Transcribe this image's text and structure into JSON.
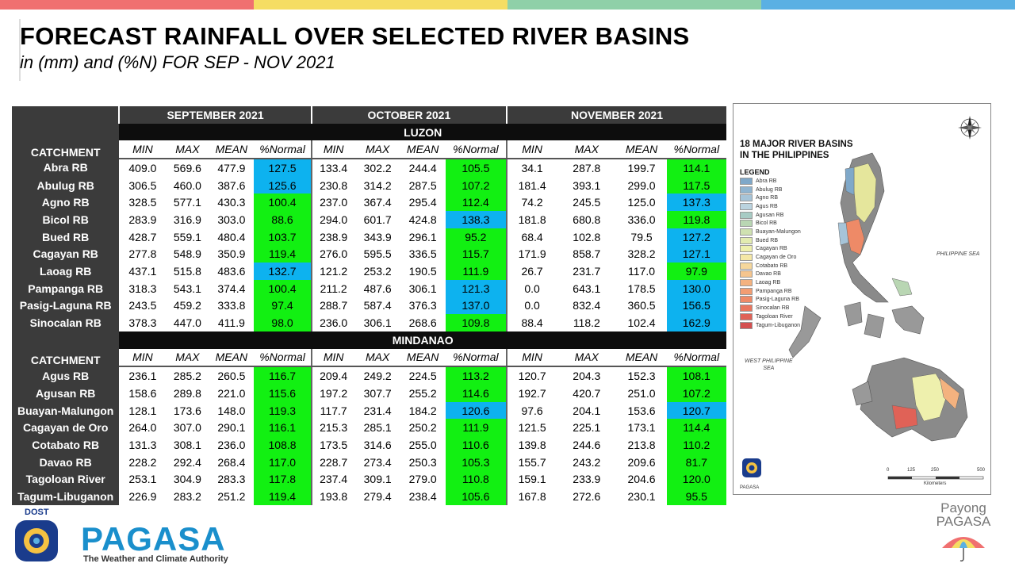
{
  "title": "FORECAST RAINFALL OVER SELECTED RIVER BASINS",
  "subtitle": "in (mm) and (%N) FOR  SEP - NOV 2021",
  "colors": {
    "top_bar": [
      "#f07070",
      "#f5dd63",
      "#8fd0a8",
      "#5ab0e3"
    ],
    "above_normal": "#12f012",
    "near_normal": "#0db2ef",
    "header_dark": "#3b3b3b"
  },
  "table": {
    "catchment_label": "CATCHMENT",
    "months": [
      "SEPTEMBER 2021",
      "OCTOBER 2021",
      "NOVEMBER 2021"
    ],
    "subheaders": [
      "MIN",
      "MAX",
      "MEAN",
      "%Normal"
    ],
    "regions": [
      {
        "name": "LUZON",
        "rows": [
          {
            "catchment": "Abra RB",
            "values": [
              "409.0",
              "569.6",
              "477.9",
              "127.5",
              "133.4",
              "302.2",
              "244.4",
              "105.5",
              "34.1",
              "287.8",
              "199.7",
              "114.1"
            ],
            "colors": [
              "blue",
              "green",
              "green"
            ]
          },
          {
            "catchment": "Abulug RB",
            "values": [
              "306.5",
              "460.0",
              "387.6",
              "125.6",
              "230.8",
              "314.2",
              "287.5",
              "107.2",
              "181.4",
              "393.1",
              "299.0",
              "117.5"
            ],
            "colors": [
              "blue",
              "green",
              "green"
            ]
          },
          {
            "catchment": "Agno RB",
            "values": [
              "328.5",
              "577.1",
              "430.3",
              "100.4",
              "237.0",
              "367.4",
              "295.4",
              "112.4",
              "74.2",
              "245.5",
              "125.0",
              "137.3"
            ],
            "colors": [
              "green",
              "green",
              "blue"
            ]
          },
          {
            "catchment": "Bicol RB",
            "values": [
              "283.9",
              "316.9",
              "303.0",
              "88.6",
              "294.0",
              "601.7",
              "424.8",
              "138.3",
              "181.8",
              "680.8",
              "336.0",
              "119.8"
            ],
            "colors": [
              "green",
              "blue",
              "green"
            ]
          },
          {
            "catchment": "Bued RB",
            "values": [
              "428.7",
              "559.1",
              "480.4",
              "103.7",
              "238.9",
              "343.9",
              "296.1",
              "95.2",
              "68.4",
              "102.8",
              "79.5",
              "127.2"
            ],
            "colors": [
              "green",
              "green",
              "blue"
            ]
          },
          {
            "catchment": "Cagayan RB",
            "values": [
              "277.8",
              "548.9",
              "350.9",
              "119.4",
              "276.0",
              "595.5",
              "336.5",
              "115.7",
              "171.9",
              "858.7",
              "328.2",
              "127.1"
            ],
            "colors": [
              "green",
              "green",
              "blue"
            ]
          },
          {
            "catchment": "Laoag RB",
            "values": [
              "437.1",
              "515.8",
              "483.6",
              "132.7",
              "121.2",
              "253.2",
              "190.5",
              "111.9",
              "26.7",
              "231.7",
              "117.0",
              "97.9"
            ],
            "colors": [
              "blue",
              "green",
              "green"
            ]
          },
          {
            "catchment": "Pampanga RB",
            "values": [
              "318.3",
              "543.1",
              "374.4",
              "100.4",
              "211.2",
              "487.6",
              "306.1",
              "121.3",
              "0.0",
              "643.1",
              "178.5",
              "130.0"
            ],
            "colors": [
              "green",
              "blue",
              "blue"
            ]
          },
          {
            "catchment": "Pasig-Laguna RB",
            "values": [
              "243.5",
              "459.2",
              "333.8",
              "97.4",
              "288.7",
              "587.4",
              "376.3",
              "137.0",
              "0.0",
              "832.4",
              "360.5",
              "156.5"
            ],
            "colors": [
              "green",
              "blue",
              "blue"
            ]
          },
          {
            "catchment": "Sinocalan RB",
            "values": [
              "378.3",
              "447.0",
              "411.9",
              "98.0",
              "236.0",
              "306.1",
              "268.6",
              "109.8",
              "88.4",
              "118.2",
              "102.4",
              "162.9"
            ],
            "colors": [
              "green",
              "green",
              "blue"
            ]
          }
        ]
      },
      {
        "name": "MINDANAO",
        "rows": [
          {
            "catchment": "Agus RB",
            "values": [
              "236.1",
              "285.2",
              "260.5",
              "116.7",
              "209.4",
              "249.2",
              "224.5",
              "113.2",
              "120.7",
              "204.3",
              "152.3",
              "108.1"
            ],
            "colors": [
              "green",
              "green",
              "green"
            ]
          },
          {
            "catchment": "Agusan RB",
            "values": [
              "158.6",
              "289.8",
              "221.0",
              "115.6",
              "197.2",
              "307.7",
              "255.2",
              "114.6",
              "192.7",
              "420.7",
              "251.0",
              "107.2"
            ],
            "colors": [
              "green",
              "green",
              "green"
            ]
          },
          {
            "catchment": "Buayan-Malungon",
            "values": [
              "128.1",
              "173.6",
              "148.0",
              "119.3",
              "117.7",
              "231.4",
              "184.2",
              "120.6",
              "97.6",
              "204.1",
              "153.6",
              "120.7"
            ],
            "colors": [
              "green",
              "blue",
              "blue"
            ]
          },
          {
            "catchment": "Cagayan de Oro",
            "values": [
              "264.0",
              "307.0",
              "290.1",
              "116.1",
              "215.3",
              "285.1",
              "250.2",
              "111.9",
              "121.5",
              "225.1",
              "173.1",
              "114.4"
            ],
            "colors": [
              "green",
              "green",
              "green"
            ]
          },
          {
            "catchment": "Cotabato RB",
            "values": [
              "131.3",
              "308.1",
              "236.0",
              "108.8",
              "173.5",
              "314.6",
              "255.0",
              "110.6",
              "139.8",
              "244.6",
              "213.8",
              "110.2"
            ],
            "colors": [
              "green",
              "green",
              "green"
            ]
          },
          {
            "catchment": "Davao RB",
            "values": [
              "228.2",
              "292.4",
              "268.4",
              "117.0",
              "228.7",
              "273.4",
              "250.3",
              "105.3",
              "155.7",
              "243.2",
              "209.6",
              "81.7"
            ],
            "colors": [
              "green",
              "green",
              "green"
            ]
          },
          {
            "catchment": "Tagoloan River",
            "values": [
              "253.1",
              "304.9",
              "283.3",
              "117.8",
              "237.4",
              "309.1",
              "279.0",
              "110.8",
              "159.1",
              "233.9",
              "204.6",
              "120.0"
            ],
            "colors": [
              "green",
              "green",
              "green"
            ]
          },
          {
            "catchment": "Tagum-Libuganon",
            "values": [
              "226.9",
              "283.2",
              "251.2",
              "119.4",
              "193.8",
              "279.4",
              "238.4",
              "105.6",
              "167.8",
              "272.6",
              "230.1",
              "95.5"
            ],
            "colors": [
              "green",
              "green",
              "green"
            ]
          }
        ]
      }
    ]
  },
  "map": {
    "title_line1": "18 MAJOR RIVER BASINS",
    "title_line2": "IN THE PHILIPPINES",
    "legend_title": "LEGEND",
    "legend": [
      {
        "label": "Abra RB",
        "color": "#7fa8c9"
      },
      {
        "label": "Abulug RB",
        "color": "#8fb4d0"
      },
      {
        "label": "Agno RB",
        "color": "#a6c4d8"
      },
      {
        "label": "Agus RB",
        "color": "#bad3df"
      },
      {
        "label": "Agusan RB",
        "color": "#a7cbc4"
      },
      {
        "label": "Bicol RB",
        "color": "#b9d6b3"
      },
      {
        "label": "Buayan-Malungon",
        "color": "#cfe1b1"
      },
      {
        "label": "Bued RB",
        "color": "#e2ebb0"
      },
      {
        "label": "Cagayan RB",
        "color": "#eef0ad"
      },
      {
        "label": "Cagayan de Oro",
        "color": "#f4e7a6"
      },
      {
        "label": "Cotabato RB",
        "color": "#f5d79c"
      },
      {
        "label": "Davao RB",
        "color": "#f5c58e"
      },
      {
        "label": "Laoag RB",
        "color": "#f4b27f"
      },
      {
        "label": "Pampanga RB",
        "color": "#f29d72"
      },
      {
        "label": "Pasig-Laguna RB",
        "color": "#ee8a67"
      },
      {
        "label": "Sinocalan RB",
        "color": "#e9765e"
      },
      {
        "label": "Tagoloan River",
        "color": "#e06257"
      },
      {
        "label": "Tagum-Libuganon",
        "color": "#d44f4f"
      }
    ],
    "sea_label_1": "PHILIPPINE SEA",
    "sea_label_2a": "WEST PHILIPPINE",
    "sea_label_2b": "SEA",
    "scale_ticks": [
      "0",
      "125",
      "250",
      "500"
    ],
    "scale_unit": "Kilometers",
    "logo_caption": "PAGASA"
  },
  "footer": {
    "dost": "DOST",
    "brand": "PAGASA",
    "tagline": "The Weather and Climate Authority",
    "payong_line1": "Payong",
    "payong_line2": "PAGASA"
  }
}
